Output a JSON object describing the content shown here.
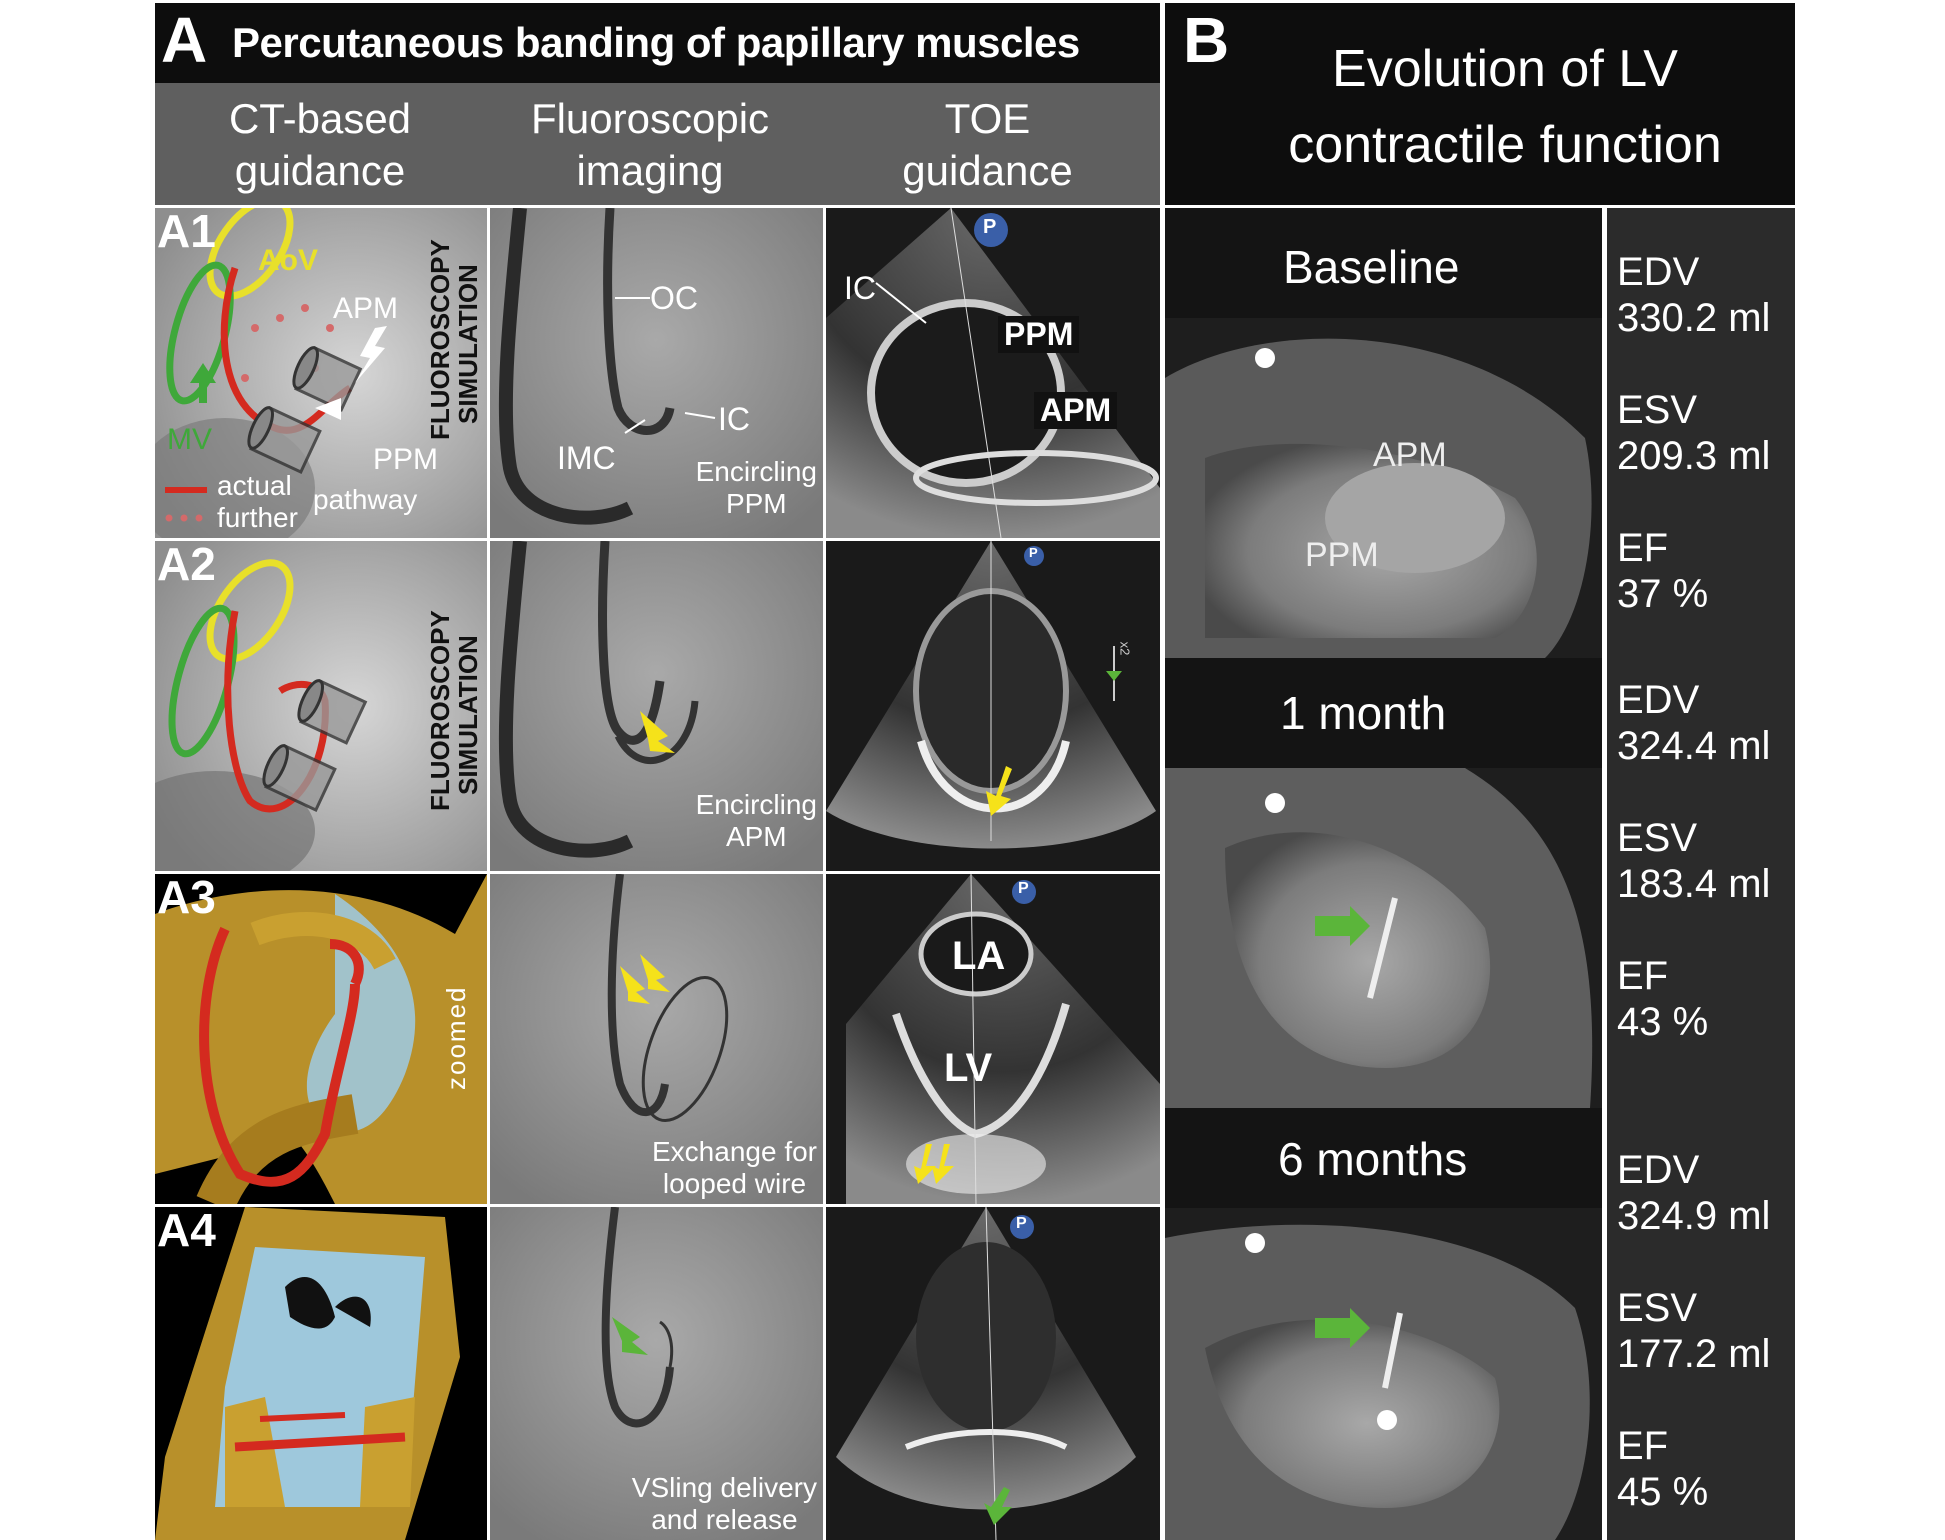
{
  "panel_a": {
    "letter": "A",
    "title": "Percutaneous banding of papillary muscles",
    "columns": [
      {
        "line1": "CT-based",
        "line2": "guidance"
      },
      {
        "line1": "Fluoroscopic",
        "line2": "imaging"
      },
      {
        "line1": "TOE",
        "line2": "guidance"
      }
    ],
    "rows": [
      {
        "id": "A1",
        "ct": {
          "side_text": [
            "FLUOROSCOPY",
            "SIMULATION"
          ],
          "labels": {
            "aov": "AoV",
            "apm": "APM",
            "mv": "MV",
            "ppm": "PPM"
          },
          "legend": {
            "actual": "actual",
            "further": "further",
            "pathway": "pathway"
          }
        },
        "fluoro": {
          "labels": {
            "oc": "OC",
            "ic": "IC",
            "imc": "IMC"
          },
          "caption": [
            "Encircling",
            "PPM"
          ]
        },
        "toe": {
          "labels": {
            "ic": "IC",
            "ppm": "PPM",
            "apm": "APM"
          },
          "badge": "P"
        }
      },
      {
        "id": "A2",
        "ct": {
          "side_text": [
            "FLUOROSCOPY",
            "SIMULATION"
          ]
        },
        "fluoro": {
          "caption": [
            "Encircling",
            "APM"
          ]
        },
        "toe": {
          "badge": "P",
          "scale": "x2"
        }
      },
      {
        "id": "A3",
        "ct": {
          "side_text": [
            "zoomed"
          ]
        },
        "fluoro": {
          "caption": [
            "Exchange for",
            "looped wire"
          ]
        },
        "toe": {
          "labels": {
            "la": "LA",
            "lv": "LV"
          },
          "badge": "P"
        }
      },
      {
        "id": "A4",
        "fluoro": {
          "caption": [
            "VSling delivery",
            "and release"
          ]
        },
        "toe": {
          "badge": "P"
        }
      }
    ]
  },
  "panel_b": {
    "letter": "B",
    "title_line1": "Evolution of LV",
    "title_line2": "contractile function",
    "timepoints": [
      {
        "label": "Baseline",
        "labels": {
          "apm": "APM",
          "ppm": "PPM"
        },
        "stats": [
          {
            "k": "EDV",
            "v": "330.2 ml"
          },
          {
            "k": "ESV",
            "v": "209.3 ml"
          },
          {
            "k": "EF",
            "v": "37 %"
          }
        ]
      },
      {
        "label": "1 month",
        "stats": [
          {
            "k": "EDV",
            "v": "324.4 ml"
          },
          {
            "k": "ESV",
            "v": "183.4 ml"
          },
          {
            "k": "EF",
            "v": "43 %"
          }
        ]
      },
      {
        "label": "6 months",
        "stats": [
          {
            "k": "EDV",
            "v": "324.9 ml"
          },
          {
            "k": "ESV",
            "v": "177.2 ml"
          },
          {
            "k": "EF",
            "v": "45 %"
          }
        ]
      }
    ]
  },
  "colors": {
    "header_dark": "#0d0d0d",
    "subheader_gray": "#5f5f5f",
    "stats_bg": "#2b2b2b",
    "yellow_arrow": "#f5e21a",
    "green_arrow": "#5bb53a",
    "ct_red": "#d42a1f",
    "ct_green": "#3fa83a",
    "ct_yellow": "#e8e02a",
    "badge_blue": "#3a5fa8"
  }
}
